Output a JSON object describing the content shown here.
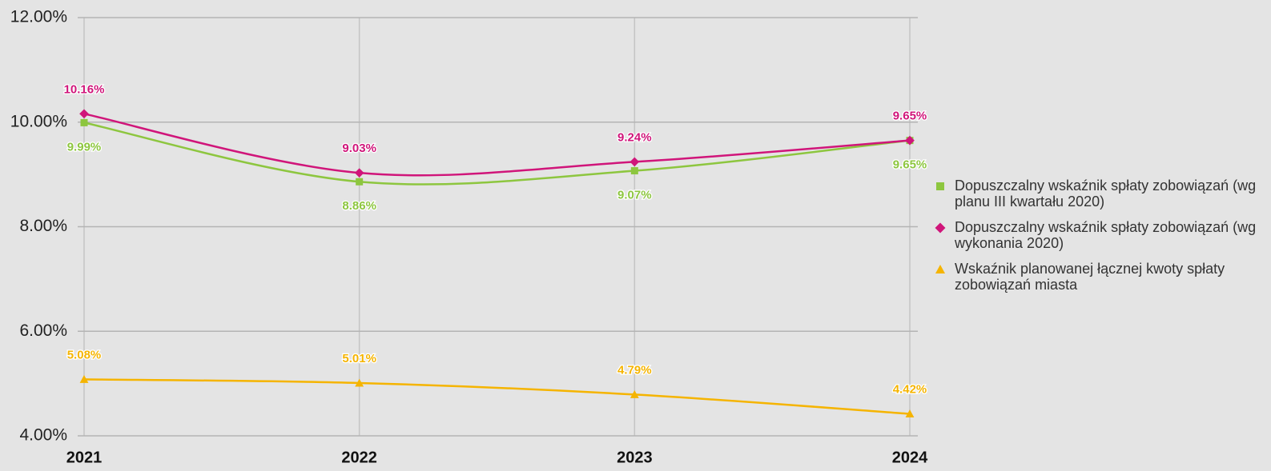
{
  "chart_data": {
    "type": "line",
    "categories": [
      "2021",
      "2022",
      "2023",
      "2024"
    ],
    "series": [
      {
        "name": "Dopuszczalny wskaźnik spłaty zobowiązań (wg planu III kwartału 2020)",
        "color": "#8dc63f",
        "marker": "square",
        "values": [
          9.99,
          8.86,
          9.07,
          9.65
        ],
        "value_labels": [
          "9.99%",
          "8.86%",
          "9.07%",
          "9.65%"
        ]
      },
      {
        "name": "Dopuszczalny wskaźnik spłaty zobowiązań (wg wykonania 2020)",
        "color": "#d0157a",
        "marker": "diamond",
        "values": [
          10.16,
          9.03,
          9.24,
          9.65
        ],
        "value_labels": [
          "10.16%",
          "9.03%",
          "9.24%",
          "9.65%"
        ]
      },
      {
        "name": "Wskaźnik planowanej łącznej kwoty spłaty zobowiązań miasta",
        "color": "#f5b400",
        "marker": "triangle",
        "values": [
          5.08,
          5.01,
          4.79,
          4.42
        ],
        "value_labels": [
          "5.08%",
          "5.01%",
          "4.79%",
          "4.42%"
        ]
      }
    ],
    "ylim": [
      4,
      12
    ],
    "yticks": [
      {
        "value": 4,
        "label": "4.00%"
      },
      {
        "value": 6,
        "label": "6.00%"
      },
      {
        "value": 8,
        "label": "8.00%"
      },
      {
        "value": 10,
        "label": "10.00%"
      },
      {
        "value": 12,
        "label": "12.00%"
      }
    ],
    "grid": true,
    "legend": "right"
  }
}
